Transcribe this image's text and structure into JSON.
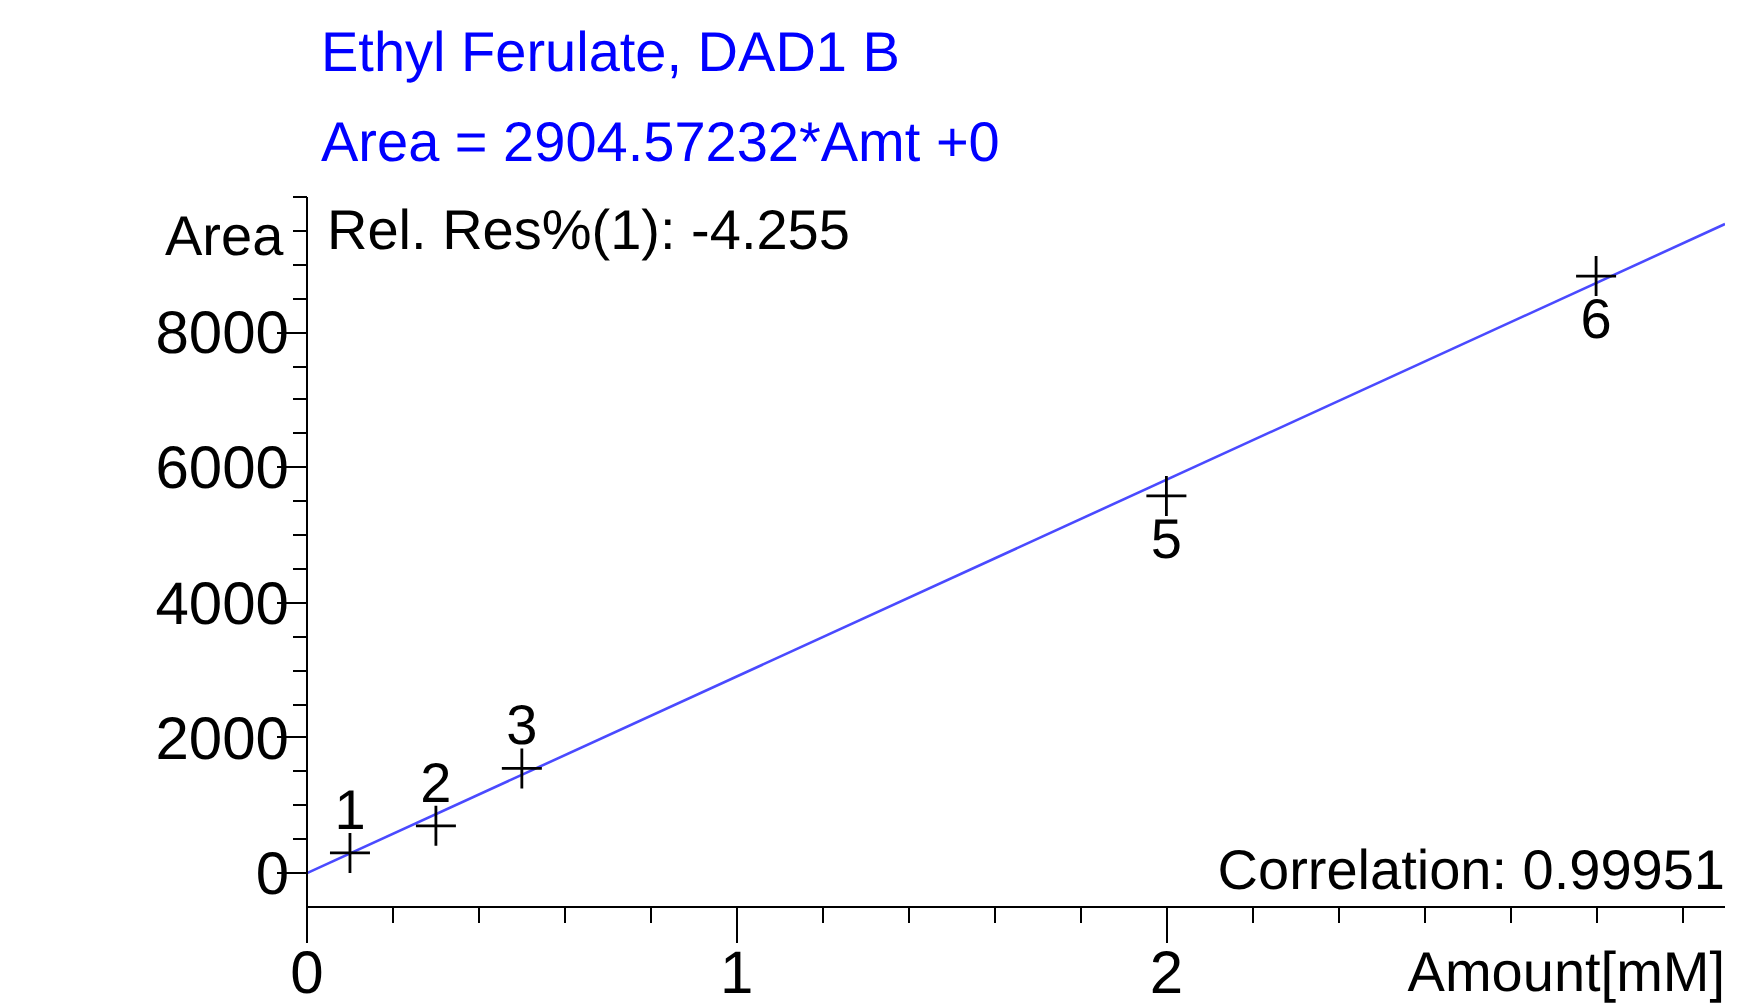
{
  "chart_data": {
    "type": "scatter",
    "title": "Ethyl Ferulate, DAD1 B",
    "subtitle": "Area = 2904.57232*Amt +0",
    "xlabel": "Amount[mM]",
    "ylabel": "Area",
    "xlim": [
      0,
      3.3
    ],
    "xticks": [
      0,
      {
        "value": 0.2,
        "label": null
      },
      {
        "value": 0.4,
        "label": null
      },
      {
        "value": 0.6,
        "label": null
      },
      {
        "value": 0.8,
        "label": null
      },
      1,
      {
        "value": 1.2,
        "label": null
      },
      {
        "value": 1.4,
        "label": null
      },
      {
        "value": 1.6,
        "label": null
      },
      {
        "value": 1.8,
        "label": null
      },
      2,
      {
        "value": 2.2,
        "label": null
      },
      {
        "value": 2.4,
        "label": null
      },
      {
        "value": 2.6,
        "label": null
      },
      {
        "value": 2.8,
        "label": null
      },
      {
        "value": 3,
        "label": null
      },
      {
        "value": 3.2,
        "label": null
      }
    ],
    "ylim": [
      -500,
      10000
    ],
    "yticks": [
      0,
      {
        "value": 500,
        "label": null
      },
      {
        "value": 1000,
        "label": null
      },
      {
        "value": 1500,
        "label": null
      },
      2000,
      {
        "value": 2500,
        "label": null
      },
      {
        "value": 3000,
        "label": null
      },
      {
        "value": 3500,
        "label": null
      },
      4000,
      {
        "value": 4500,
        "label": null
      },
      {
        "value": 5000,
        "label": null
      },
      {
        "value": 5500,
        "label": null
      },
      6000,
      {
        "value": 6500,
        "label": null
      },
      {
        "value": 7000,
        "label": null
      },
      {
        "value": 7500,
        "label": null
      },
      8000,
      {
        "value": 8500,
        "label": null
      },
      {
        "value": 9000,
        "label": null
      },
      {
        "value": 9500,
        "label": null
      },
      {
        "value": 10000,
        "label": null
      }
    ],
    "grid": false,
    "series": [
      {
        "type": "line",
        "color": "#4a4aff",
        "x": [
          0,
          3.3
        ],
        "values": [
          0,
          9600
        ]
      },
      {
        "marker": "cross",
        "color": "#000000",
        "x": [
          0.1,
          0.3,
          0.5,
          2,
          3
        ],
        "values": [
          300,
          700,
          1550,
          5580,
          8830
        ]
      }
    ],
    "annotations": [
      "Rel. Res%(1): -4.255",
      "Correlation: 0.99951",
      {
        "text": "1",
        "x": 0.1,
        "y": 300
      },
      {
        "text": "2",
        "x": 0.3,
        "y": 700
      },
      {
        "text": "3",
        "x": 0.5,
        "y": 1550
      },
      {
        "text": "5",
        "x": 2,
        "y": 5580
      },
      {
        "text": "6",
        "x": 3,
        "y": 8830
      }
    ]
  }
}
